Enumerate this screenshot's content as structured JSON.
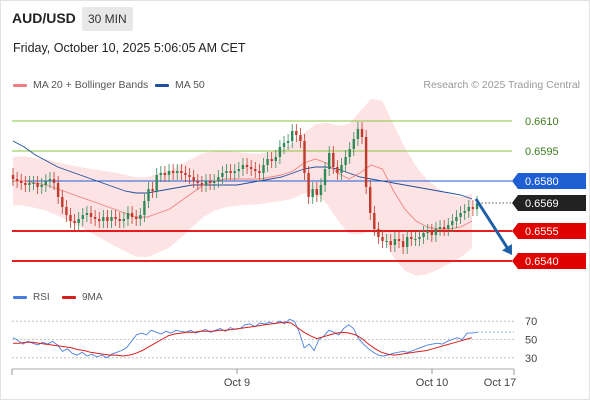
{
  "header": {
    "pair": "AUD/USD",
    "timeframe": "30 MIN"
  },
  "timestamp": "Friday, October 10, 2025 5:06:05 AM CET",
  "legend": {
    "ma20": "MA 20 + Bollinger Bands",
    "ma50": "MA 50"
  },
  "credit": "Research © 2025 Trading Central",
  "rsi_legend": {
    "rsi": "RSI",
    "ma9": "9MA"
  },
  "colors": {
    "ma20": "#f08080",
    "ma50": "#1f4e9c",
    "bull": "#2e8b57",
    "bear": "#c0392b",
    "resistance": "#8cc63f",
    "pivot": "#1f5fd4",
    "support": "#e00000",
    "rsi": "#4a7fe0",
    "ma9": "#d62020"
  },
  "chart_data": [
    {
      "type": "candlestick",
      "xlabels": [
        "Oct 9",
        "Oct 10",
        "Oct 17"
      ],
      "ylim": [
        0.6528,
        0.6622
      ],
      "levels": [
        {
          "value": 0.661,
          "label": "0.6610",
          "kind": "resistance"
        },
        {
          "value": 0.6595,
          "label": "0.6595",
          "kind": "resistance"
        },
        {
          "value": 0.658,
          "label": "0.6580",
          "kind": "pivot"
        },
        {
          "value": 0.6555,
          "label": "0.6555",
          "kind": "support"
        },
        {
          "value": 0.654,
          "label": "0.6540",
          "kind": "support"
        }
      ],
      "last_price": {
        "value": 0.6569,
        "label": "0.6569"
      },
      "forecast": {
        "from": 0.6571,
        "to": 0.6543,
        "direction": "down"
      },
      "close": [
        0.6581,
        0.658,
        0.6579,
        0.6578,
        0.6579,
        0.6579,
        0.6577,
        0.6578,
        0.658,
        0.6581,
        0.6579,
        0.6572,
        0.6567,
        0.6563,
        0.656,
        0.6559,
        0.6561,
        0.6563,
        0.6564,
        0.6562,
        0.6561,
        0.656,
        0.6562,
        0.656,
        0.6562,
        0.6561,
        0.656,
        0.6561,
        0.6564,
        0.6562,
        0.6561,
        0.6563,
        0.657,
        0.6576,
        0.6575,
        0.6583,
        0.6584,
        0.6583,
        0.6585,
        0.6584,
        0.6585,
        0.6584,
        0.6583,
        0.6582,
        0.658,
        0.6579,
        0.6578,
        0.658,
        0.6579,
        0.658,
        0.6582,
        0.6584,
        0.6585,
        0.6584,
        0.6585,
        0.6586,
        0.6588,
        0.6587,
        0.6586,
        0.6585,
        0.6584,
        0.6588,
        0.6591,
        0.659,
        0.6592,
        0.6597,
        0.6599,
        0.66,
        0.6605,
        0.6603,
        0.66,
        0.6584,
        0.6572,
        0.6576,
        0.6573,
        0.6578,
        0.6586,
        0.6594,
        0.6587,
        0.6584,
        0.6588,
        0.6592,
        0.6596,
        0.6601,
        0.6606,
        0.6602,
        0.6577,
        0.6564,
        0.6556,
        0.6552,
        0.655,
        0.655,
        0.6548,
        0.6551,
        0.655,
        0.6547,
        0.6552,
        0.6551,
        0.6551,
        0.6552,
        0.6554,
        0.6555,
        0.6553,
        0.6556,
        0.6557,
        0.6556,
        0.6558,
        0.656,
        0.6562,
        0.6564,
        0.6565,
        0.6567,
        0.6566,
        0.6569
      ],
      "ma20": [
        0.658,
        0.658,
        0.6579,
        0.6578,
        0.6576,
        0.6574,
        0.6572,
        0.657,
        0.6568,
        0.6566,
        0.6564,
        0.6562,
        0.6562,
        0.6564,
        0.6566,
        0.657,
        0.6574,
        0.6578,
        0.658,
        0.6581,
        0.6581,
        0.6581,
        0.6581,
        0.6582,
        0.6583,
        0.6585,
        0.6589,
        0.6591,
        0.6589,
        0.6584,
        0.6581,
        0.6584,
        0.6588,
        0.6586,
        0.6575,
        0.6566,
        0.656,
        0.6557,
        0.6556,
        0.6556,
        0.6557,
        0.656
      ],
      "ma50": [
        0.66,
        0.6597,
        0.6593,
        0.659,
        0.6587,
        0.6585,
        0.6583,
        0.6581,
        0.6579,
        0.6577,
        0.6575,
        0.6574,
        0.6574,
        0.6575,
        0.6576,
        0.6577,
        0.6578,
        0.6578,
        0.6578,
        0.6578,
        0.6578,
        0.6579,
        0.658,
        0.6581,
        0.6582,
        0.6584,
        0.6586,
        0.6587,
        0.6587,
        0.6586,
        0.6584,
        0.6582,
        0.6581,
        0.658,
        0.6579,
        0.6578,
        0.6577,
        0.6576,
        0.6575,
        0.6574,
        0.6573,
        0.6571
      ]
    },
    {
      "type": "line",
      "title": "RSI",
      "ylim": [
        20,
        80
      ],
      "yticks": [
        70,
        50,
        30
      ],
      "series": [
        {
          "name": "RSI",
          "values": [
            52,
            49,
            45,
            48,
            46,
            44,
            47,
            45,
            48,
            44,
            37,
            40,
            35,
            33,
            36,
            32,
            34,
            31,
            33,
            30,
            34,
            36,
            38,
            41,
            48,
            55,
            57,
            55,
            60,
            58,
            56,
            59,
            57,
            60,
            59,
            58,
            60,
            57,
            59,
            61,
            58,
            60,
            62,
            59,
            63,
            61,
            62,
            66,
            67,
            64,
            68,
            67,
            69,
            67,
            70,
            67,
            72,
            70,
            58,
            41,
            45,
            38,
            50,
            54,
            60,
            58,
            55,
            62,
            66,
            62,
            51,
            45,
            40,
            36,
            33,
            32,
            33,
            35,
            36,
            37,
            36,
            38,
            40,
            42,
            44,
            45,
            46,
            45,
            48,
            50,
            52,
            50,
            57,
            57,
            58
          ]
        },
        {
          "name": "9MA",
          "values": [
            46,
            46,
            47,
            47,
            46,
            45,
            44,
            43,
            42,
            41,
            39,
            38,
            36,
            35,
            34,
            33,
            33,
            32,
            33,
            35,
            38,
            42,
            46,
            50,
            54,
            56,
            57,
            58,
            58,
            59,
            59,
            59,
            60,
            60,
            61,
            62,
            63,
            64,
            65,
            66,
            67,
            68,
            69,
            68,
            63,
            58,
            54,
            51,
            53,
            55,
            57,
            58,
            57,
            55,
            51,
            45,
            40,
            36,
            34,
            33,
            34,
            35,
            36,
            37,
            38,
            40,
            42,
            44,
            46,
            48,
            50,
            52
          ]
        }
      ]
    }
  ]
}
